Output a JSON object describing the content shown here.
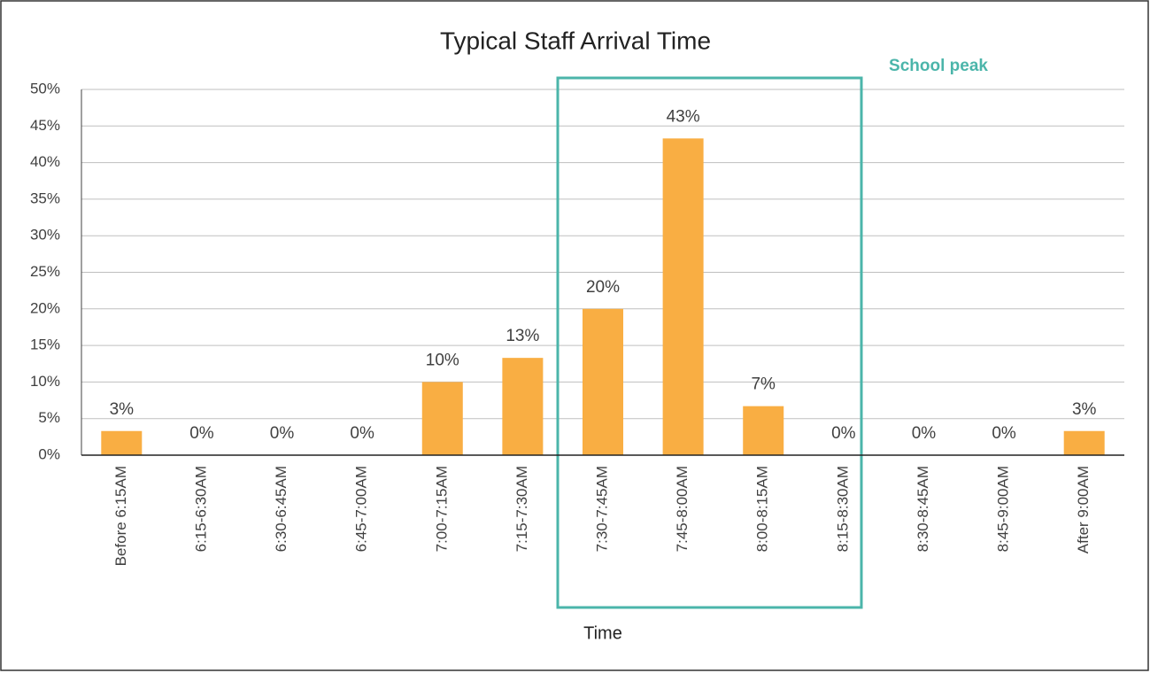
{
  "chart_data": {
    "type": "bar",
    "title": "Typical Staff Arrival Time",
    "x_label": "Time",
    "categories": [
      "Before 6:15AM",
      "6:15-6:30AM",
      "6:30-6:45AM",
      "6:45-7:00AM",
      "7:00-7:15AM",
      "7:15-7:30AM",
      "7:30-7:45AM",
      "7:45-8:00AM",
      "8:00-8:15AM",
      "8:15-8:30AM",
      "8:30-8:45AM",
      "8:45-9:00AM",
      "After 9:00AM"
    ],
    "values": [
      3.3,
      0,
      0,
      0,
      10,
      13.3,
      20,
      43.3,
      6.7,
      0,
      0,
      0,
      3.3
    ],
    "value_labels": [
      "3%",
      "0%",
      "0%",
      "0%",
      "10%",
      "13%",
      "20%",
      "43%",
      "7%",
      "0%",
      "0%",
      "0%",
      "3%"
    ],
    "color": "#f9ae43",
    "ylim": [
      0,
      50
    ],
    "yticks": [
      {
        "value": 0,
        "label": "0%"
      },
      {
        "value": 5,
        "label": "5%"
      },
      {
        "value": 10,
        "label": "10%"
      },
      {
        "value": 15,
        "label": "15%"
      },
      {
        "value": 20,
        "label": "20%"
      },
      {
        "value": 25,
        "label": "25%"
      },
      {
        "value": 30,
        "label": "30%"
      },
      {
        "value": 35,
        "label": "35%"
      },
      {
        "value": 40,
        "label": "40%"
      },
      {
        "value": 45,
        "label": "45%"
      },
      {
        "value": 50,
        "label": "50%"
      }
    ],
    "grid": true,
    "annotation": "School peak"
  }
}
